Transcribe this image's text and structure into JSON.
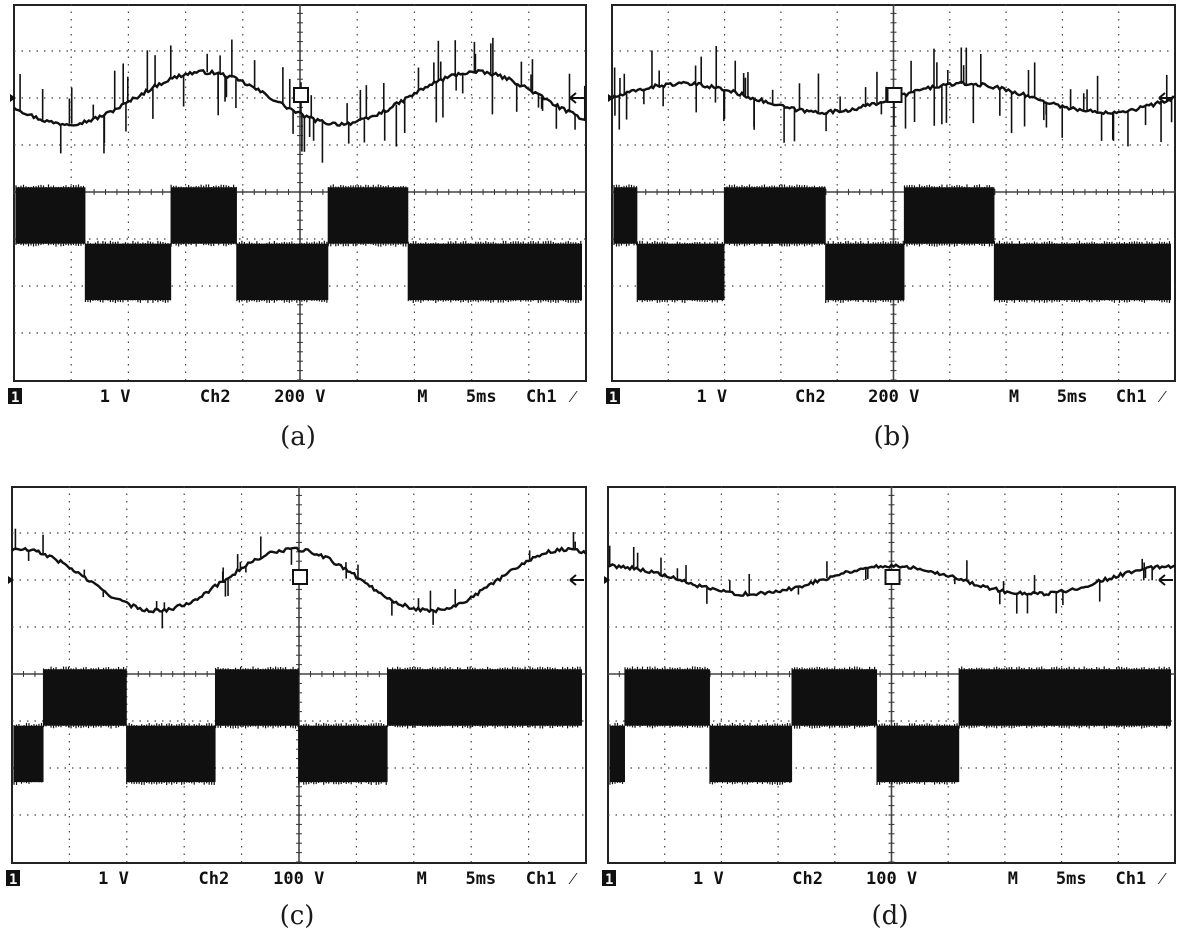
{
  "chart_data": [
    {
      "type": "line",
      "caption": "(a)",
      "ch1_marker": "1",
      "readout": {
        "ch1_scale": "1 V",
        "ch2_label": "Ch2",
        "ch2_scale": "200 V",
        "m_label": "M",
        "time_scale": "5ms",
        "trigger": "Ch1",
        "trigger_slope": "⁄"
      },
      "series": [
        {
          "name": "",
          "waveform": "sine",
          "amplitude_div": 0.55,
          "center_div": 2.0,
          "periods": 2.1,
          "phase_deg": 200,
          "spikes": "heavy"
        },
        {
          "name": "",
          "waveform": "square",
          "levels_div": [
            -1.2,
            0.0
          ],
          "transitions_div": [
            1.25,
            2.75,
            3.9,
            5.5,
            6.9
          ],
          "start_high": true
        }
      ]
    },
    {
      "type": "line",
      "caption": "(b)",
      "ch1_marker": "1",
      "readout": {
        "ch1_scale": "1 V",
        "ch2_label": "Ch2",
        "ch2_scale": "200 V",
        "m_label": "M",
        "time_scale": "5ms",
        "trigger": "Ch1",
        "trigger_slope": "⁄"
      },
      "series": [
        {
          "name": "",
          "waveform": "sine",
          "amplitude_div": 0.3,
          "center_div": 2.0,
          "periods": 2.0,
          "phase_deg": 0,
          "spikes": "heavy"
        },
        {
          "name": "",
          "waveform": "square",
          "levels_div": [
            -1.2,
            0.0
          ],
          "transitions_div": [
            0.45,
            2.0,
            3.8,
            5.2,
            6.8
          ],
          "start_high": true
        }
      ]
    },
    {
      "type": "line",
      "caption": "(c)",
      "ch1_marker": "1",
      "readout": {
        "ch1_scale": "1 V",
        "ch2_label": "Ch2",
        "ch2_scale": "100 V",
        "m_label": "M",
        "time_scale": "5ms",
        "trigger": "Ch1",
        "trigger_slope": "⁄"
      },
      "series": [
        {
          "name": "",
          "waveform": "sine",
          "amplitude_div": 0.65,
          "center_div": 2.0,
          "periods": 2.1,
          "phase_deg": 80,
          "spikes": "light"
        },
        {
          "name": "",
          "waveform": "square",
          "levels_div": [
            -1.2,
            0.0
          ],
          "transitions_div": [
            0.55,
            2.0,
            3.55,
            5.0,
            6.55
          ],
          "start_high": false
        }
      ]
    },
    {
      "type": "line",
      "caption": "(d)",
      "ch1_marker": "1",
      "readout": {
        "ch1_scale": "1 V",
        "ch2_label": "Ch2",
        "ch2_scale": "100 V",
        "m_label": "M",
        "time_scale": "5ms",
        "trigger": "Ch1",
        "trigger_slope": "⁄"
      },
      "series": [
        {
          "name": "",
          "waveform": "sine",
          "amplitude_div": 0.3,
          "center_div": 2.0,
          "periods": 2.0,
          "phase_deg": 90,
          "spikes": "light"
        },
        {
          "name": "",
          "waveform": "square",
          "levels_div": [
            -1.2,
            0.0
          ],
          "transitions_div": [
            0.3,
            1.8,
            3.25,
            4.75,
            6.2
          ],
          "start_high": false
        }
      ]
    }
  ]
}
